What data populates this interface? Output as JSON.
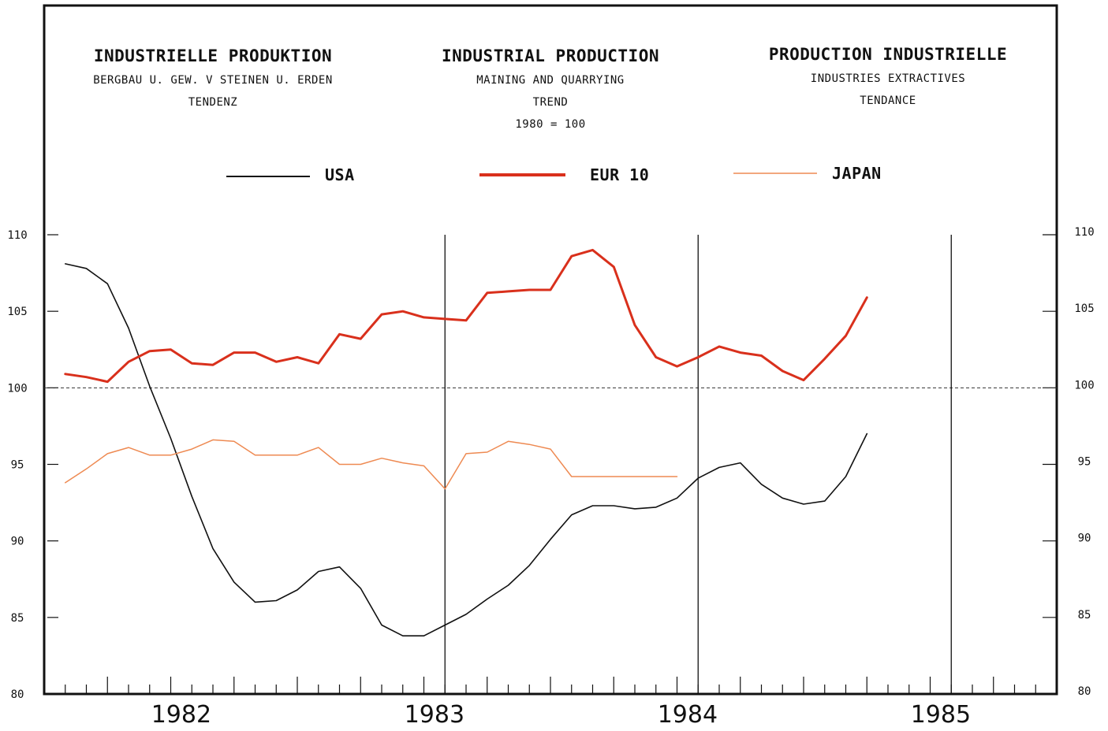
{
  "chart_data": {
    "type": "line",
    "header": {
      "de": {
        "title": "INDUSTRIELLE PRODUKTION",
        "subtitle": "BERGBAU U. GEW. V STEINEN U. ERDEN",
        "note": "TENDENZ"
      },
      "en": {
        "title": "INDUSTRIAL PRODUCTION",
        "subtitle": "MAINING AND QUARRYING",
        "note": "TREND",
        "base": "1980 = 100"
      },
      "fr": {
        "title": "PRODUCTION INDUSTRIELLE",
        "subtitle": "INDUSTRIES EXTRACTIVES",
        "note": "TENDANCE"
      }
    },
    "x_unit": "month",
    "x_start": "1981-12",
    "x_end": "1985-12",
    "year_labels": [
      "1982",
      "1983",
      "1984",
      "1985"
    ],
    "ylim": [
      80,
      110
    ],
    "y_ticks": [
      80,
      85,
      90,
      95,
      100,
      105,
      110
    ],
    "y_tick_labels": [
      "80",
      "85",
      "90",
      "95",
      "100",
      "105",
      "110"
    ],
    "reference_line": 100,
    "vertical_rules": [
      "1983-07",
      "1984-07",
      "1985-07"
    ],
    "legend_position": "top",
    "series": [
      {
        "name": "USA",
        "color": "#111111",
        "x": [
          "1982-01",
          "1982-02",
          "1982-03",
          "1982-04",
          "1982-05",
          "1982-06",
          "1982-07",
          "1982-08",
          "1982-09",
          "1982-10",
          "1982-11",
          "1982-12",
          "1983-01",
          "1983-02",
          "1983-03",
          "1983-04",
          "1983-05",
          "1983-06",
          "1983-07",
          "1983-08",
          "1983-09",
          "1983-10",
          "1983-11",
          "1983-12",
          "1984-01",
          "1984-02",
          "1984-03",
          "1984-04",
          "1984-05",
          "1984-06",
          "1984-07",
          "1984-08",
          "1984-09",
          "1984-10",
          "1984-11",
          "1984-12",
          "1985-01",
          "1985-02",
          "1985-03"
        ],
        "values": [
          108.1,
          107.8,
          106.8,
          103.9,
          100.1,
          96.7,
          92.9,
          89.5,
          87.3,
          86.0,
          86.1,
          86.8,
          88.0,
          88.3,
          86.9,
          84.5,
          83.8,
          83.8,
          84.5,
          85.2,
          86.2,
          87.1,
          88.4,
          90.1,
          91.7,
          92.3,
          92.3,
          92.1,
          92.2,
          92.8,
          94.1,
          94.8,
          95.1,
          93.7,
          92.8,
          92.4,
          92.6,
          94.2,
          97.0
        ]
      },
      {
        "name": "EUR 10",
        "color": "#d9301c",
        "x": [
          "1982-01",
          "1982-02",
          "1982-03",
          "1982-04",
          "1982-05",
          "1982-06",
          "1982-07",
          "1982-08",
          "1982-09",
          "1982-10",
          "1982-11",
          "1982-12",
          "1983-01",
          "1983-02",
          "1983-03",
          "1983-04",
          "1983-05",
          "1983-06",
          "1983-07",
          "1983-08",
          "1983-09",
          "1983-10",
          "1983-11",
          "1983-12",
          "1984-01",
          "1984-02",
          "1984-03",
          "1984-04",
          "1984-05",
          "1984-06",
          "1984-07",
          "1984-08",
          "1984-09",
          "1984-10",
          "1984-11",
          "1984-12",
          "1985-01",
          "1985-02",
          "1985-03"
        ],
        "values": [
          100.9,
          100.7,
          100.4,
          101.7,
          102.4,
          102.5,
          101.6,
          101.5,
          102.3,
          102.3,
          101.7,
          102.0,
          101.6,
          103.5,
          103.2,
          104.8,
          105.0,
          104.6,
          104.5,
          104.4,
          106.2,
          106.3,
          106.4,
          106.4,
          108.6,
          109.0,
          107.9,
          104.1,
          102.0,
          101.4,
          102.0,
          102.7,
          102.3,
          102.1,
          101.1,
          100.5,
          101.9,
          103.4,
          105.9
        ]
      },
      {
        "name": "JAPAN",
        "color": "#ee8a52",
        "x": [
          "1982-01",
          "1982-02",
          "1982-03",
          "1982-04",
          "1982-05",
          "1982-06",
          "1982-07",
          "1982-08",
          "1982-09",
          "1982-10",
          "1982-11",
          "1982-12",
          "1983-01",
          "1983-02",
          "1983-03",
          "1983-04",
          "1983-05",
          "1983-06",
          "1983-07",
          "1983-08",
          "1983-09",
          "1983-10",
          "1983-11",
          "1983-12",
          "1984-01",
          "1984-02",
          "1984-03",
          "1984-04",
          "1984-05",
          "1984-06"
        ],
        "values": [
          93.8,
          94.7,
          95.7,
          96.1,
          95.6,
          95.6,
          96.0,
          96.6,
          96.5,
          95.6,
          95.6,
          95.6,
          96.1,
          95.0,
          95.0,
          95.4,
          95.1,
          94.9,
          93.4,
          95.7,
          95.8,
          96.5,
          96.3,
          96.0,
          94.2,
          94.2,
          94.2,
          94.2,
          94.2,
          94.2
        ]
      }
    ]
  }
}
